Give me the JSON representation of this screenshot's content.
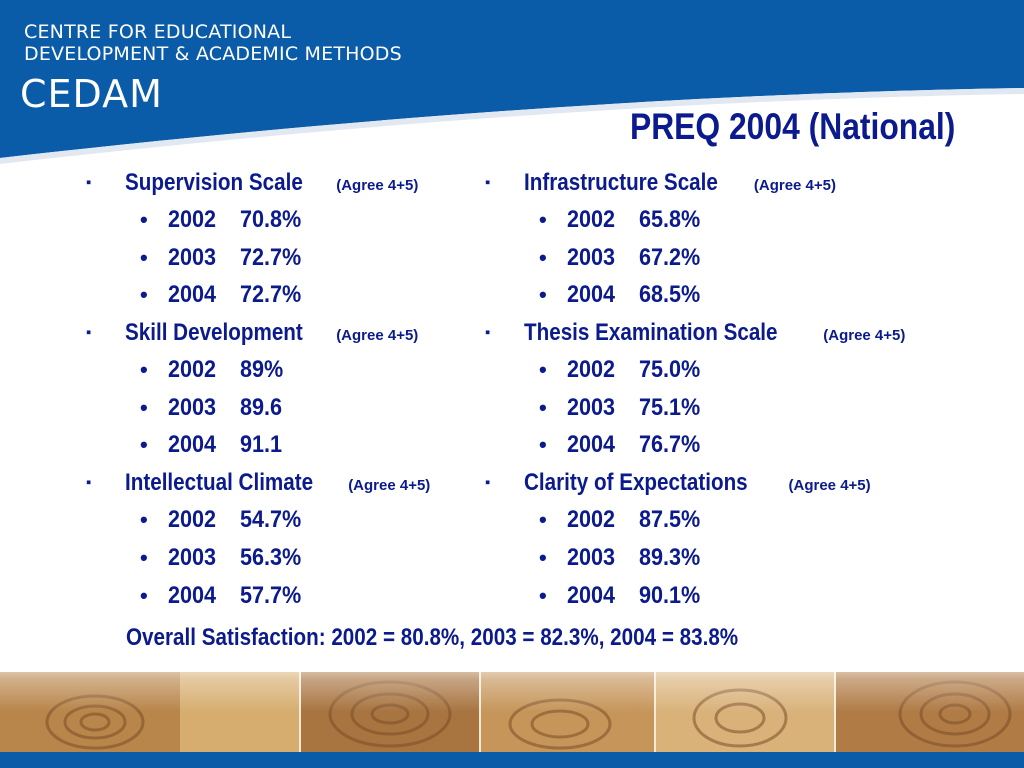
{
  "header": {
    "org_line_1": "CENTRE FOR EDUCATIONAL",
    "org_line_2": "DEVELOPMENT & ACADEMIC METHODS",
    "org_abbrev": "CEDAM"
  },
  "slide": {
    "title": "PREQ 2004 (National)",
    "overall": "Overall Satisfaction: 2002 = 80.8%, 2003 = 82.3%, 2004 = 83.8%"
  },
  "columns": [
    {
      "scales": [
        {
          "name": "Supervision Scale",
          "note": "(Agree 4+5)",
          "rows": [
            {
              "year": "2002",
              "value": "70.8%"
            },
            {
              "year": "2003",
              "value": "72.7%"
            },
            {
              "year": "2004",
              "value": "72.7%"
            }
          ]
        },
        {
          "name": "Skill Development",
          "note": "(Agree 4+5)",
          "rows": [
            {
              "year": "2002",
              "value": "89%"
            },
            {
              "year": "2003",
              "value": "89.6"
            },
            {
              "year": "2004",
              "value": "91.1"
            }
          ]
        },
        {
          "name": "Intellectual Climate",
          "note": "(Agree 4+5)",
          "rows": [
            {
              "year": "2002",
              "value": "54.7%"
            },
            {
              "year": "2003",
              "value": "56.3%"
            },
            {
              "year": "2004",
              "value": "57.7%"
            }
          ]
        }
      ]
    },
    {
      "scales": [
        {
          "name": "Infrastructure Scale",
          "note": "(Agree 4+5)",
          "rows": [
            {
              "year": "2002",
              "value": "65.8%"
            },
            {
              "year": "2003",
              "value": "67.2%"
            },
            {
              "year": "2004",
              "value": "68.5%"
            }
          ]
        },
        {
          "name": "Thesis Examination Scale",
          "note": "(Agree 4+5)",
          "rows": [
            {
              "year": "2002",
              "value": "75.0%"
            },
            {
              "year": "2003",
              "value": "75.1%"
            },
            {
              "year": "2004",
              "value": "76.7%"
            }
          ]
        },
        {
          "name": "Clarity of Expectations",
          "note": "(Agree 4+5)",
          "rows": [
            {
              "year": "2002",
              "value": "87.5%"
            },
            {
              "year": "2003",
              "value": "89.3%"
            },
            {
              "year": "2004",
              "value": "90.1%"
            }
          ]
        }
      ]
    }
  ],
  "bullets": {
    "level1": "▪",
    "level2": "•"
  },
  "colors": {
    "header_blue": "#0a5ba8",
    "text_navy": "#0b1a8c",
    "strip_gold": "#c99a55",
    "footer_blue": "#0a5ba8"
  }
}
